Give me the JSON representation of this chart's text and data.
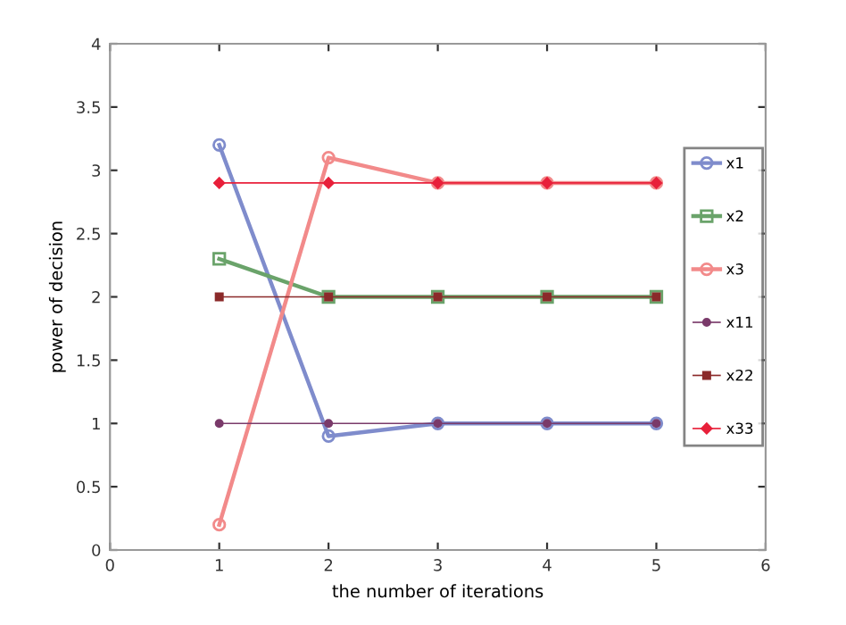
{
  "chart_data": {
    "type": "line",
    "xlabel": "the number of iterations",
    "ylabel": "power of decision",
    "x": [
      1,
      2,
      3,
      4,
      5
    ],
    "xlim": [
      0,
      6
    ],
    "xticks": [
      0,
      1,
      2,
      3,
      4,
      5,
      6
    ],
    "ylim": [
      0,
      4
    ],
    "yticks": [
      0,
      0.5,
      1,
      1.5,
      2,
      2.5,
      3,
      3.5,
      4
    ],
    "grid": false,
    "legend": "right",
    "line_style": "solid",
    "series": [
      {
        "name": "x1",
        "color": "#7f8ccc",
        "marker": "circle",
        "values": [
          3.2,
          0.9,
          1,
          1,
          1
        ]
      },
      {
        "name": "x2",
        "color": "#6aa36a",
        "marker": "square",
        "values": [
          2.3,
          2,
          2,
          2,
          2
        ]
      },
      {
        "name": "x3",
        "color": "#f28a8a",
        "marker": "circle",
        "values": [
          0.2,
          3.1,
          2.9,
          2.9,
          2.9
        ]
      },
      {
        "name": "x11",
        "color": "#7a3a6a",
        "marker": "circle",
        "values": [
          1,
          1,
          1,
          1,
          1
        ]
      },
      {
        "name": "x22",
        "color": "#8b2a2a",
        "marker": "square",
        "values": [
          2,
          2,
          2,
          2,
          2
        ]
      },
      {
        "name": "x33",
        "color": "#e8203a",
        "marker": "diamond",
        "values": [
          2.9,
          2.9,
          2.9,
          2.9,
          2.9
        ]
      }
    ]
  }
}
